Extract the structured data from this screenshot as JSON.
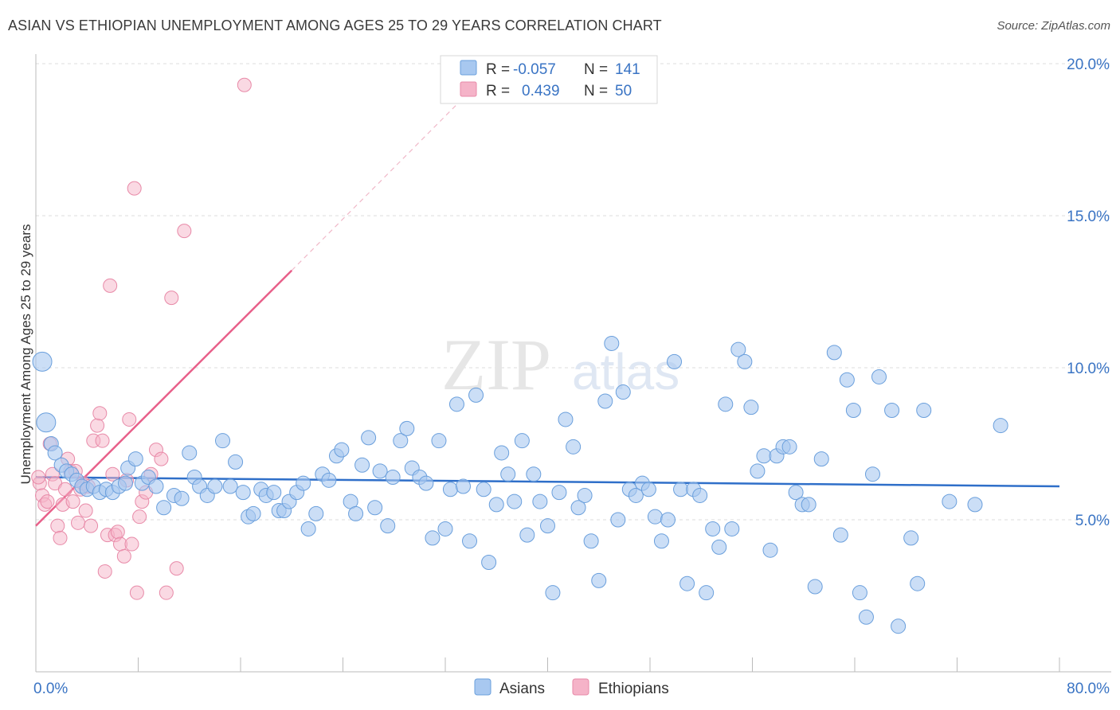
{
  "header": {
    "title": "ASIAN VS ETHIOPIAN UNEMPLOYMENT AMONG AGES 25 TO 29 YEARS CORRELATION CHART",
    "source": "Source: ZipAtlas.com"
  },
  "watermark": {
    "zip": "ZIP",
    "atlas": "atlas"
  },
  "stats_box": {
    "rows": [
      {
        "r_label": "R =",
        "r_value": "-0.057",
        "n_label": "N =",
        "n_value": "141",
        "color": "#a8c8f0"
      },
      {
        "r_label": "R =",
        "r_value": " 0.439",
        "n_label": "N =",
        "n_value": " 50",
        "color": "#f5b3c8"
      }
    ]
  },
  "legend": {
    "items": [
      "Asians",
      "Ethiopians"
    ]
  },
  "colors": {
    "asian_fill": "#a8c8f0",
    "asian_stroke": "#6a9fdc",
    "asian_line": "#2f6fc9",
    "ethiopian_fill": "#f5b3c8",
    "ethiopian_stroke": "#e88aa8",
    "ethiopian_line": "#e8608a",
    "tick": "#3a74c4"
  },
  "chart_data": {
    "type": "scatter",
    "title": "ASIAN VS ETHIOPIAN UNEMPLOYMENT AMONG AGES 25 TO 29 YEARS CORRELATION CHART",
    "xlabel": "",
    "ylabel": "Unemployment Among Ages 25 to 29 years",
    "xlim": [
      0,
      80
    ],
    "ylim": [
      0,
      20
    ],
    "x_tick_labels": [
      "0.0%",
      "80.0%"
    ],
    "y_ticks": [
      5,
      10,
      15,
      20
    ],
    "y_tick_labels": [
      "5.0%",
      "10.0%",
      "15.0%",
      "20.0%"
    ],
    "grid": true,
    "legend_position": "bottom-center",
    "series": [
      {
        "name": "Asians",
        "r": -0.057,
        "n": 141,
        "trend": {
          "x0": 0,
          "y0": 6.4,
          "x1": 80,
          "y1": 6.1
        },
        "points": [
          [
            0.5,
            10.2
          ],
          [
            0.8,
            8.2
          ],
          [
            1.2,
            7.5
          ],
          [
            1.5,
            7.2
          ],
          [
            2,
            6.8
          ],
          [
            2.4,
            6.6
          ],
          [
            2.8,
            6.5
          ],
          [
            3.2,
            6.3
          ],
          [
            3.6,
            6.1
          ],
          [
            4,
            6.0
          ],
          [
            4.5,
            6.1
          ],
          [
            5,
            5.9
          ],
          [
            5.5,
            6.0
          ],
          [
            6,
            5.9
          ],
          [
            6.5,
            6.1
          ],
          [
            7,
            6.2
          ],
          [
            7.2,
            6.7
          ],
          [
            7.8,
            7.0
          ],
          [
            8.3,
            6.2
          ],
          [
            8.8,
            6.4
          ],
          [
            9.4,
            6.1
          ],
          [
            10,
            5.4
          ],
          [
            10.8,
            5.8
          ],
          [
            11.4,
            5.7
          ],
          [
            12,
            7.2
          ],
          [
            12.4,
            6.4
          ],
          [
            12.8,
            6.1
          ],
          [
            13.4,
            5.8
          ],
          [
            14,
            6.1
          ],
          [
            14.6,
            7.6
          ],
          [
            15.2,
            6.1
          ],
          [
            15.6,
            6.9
          ],
          [
            16.2,
            5.9
          ],
          [
            16.6,
            5.1
          ],
          [
            17,
            5.2
          ],
          [
            17.6,
            6.0
          ],
          [
            18,
            5.8
          ],
          [
            18.6,
            5.9
          ],
          [
            19,
            5.3
          ],
          [
            19.4,
            5.3
          ],
          [
            19.8,
            5.6
          ],
          [
            20.4,
            5.9
          ],
          [
            20.9,
            6.2
          ],
          [
            21.3,
            4.7
          ],
          [
            21.9,
            5.2
          ],
          [
            22.4,
            6.5
          ],
          [
            22.9,
            6.3
          ],
          [
            23.5,
            7.1
          ],
          [
            23.9,
            7.3
          ],
          [
            24.6,
            5.6
          ],
          [
            25,
            5.2
          ],
          [
            25.5,
            6.8
          ],
          [
            26,
            7.7
          ],
          [
            26.5,
            5.4
          ],
          [
            26.9,
            6.6
          ],
          [
            27.5,
            4.8
          ],
          [
            27.9,
            6.4
          ],
          [
            28.5,
            7.6
          ],
          [
            29,
            8.0
          ],
          [
            29.4,
            6.7
          ],
          [
            30,
            6.4
          ],
          [
            30.5,
            6.2
          ],
          [
            31,
            4.4
          ],
          [
            31.5,
            7.6
          ],
          [
            32,
            4.7
          ],
          [
            32.4,
            6.0
          ],
          [
            32.9,
            8.8
          ],
          [
            33.4,
            6.1
          ],
          [
            33.9,
            4.3
          ],
          [
            34.4,
            9.1
          ],
          [
            35,
            6.0
          ],
          [
            35.4,
            3.6
          ],
          [
            36,
            5.5
          ],
          [
            36.4,
            7.2
          ],
          [
            36.9,
            6.5
          ],
          [
            37.4,
            5.6
          ],
          [
            38,
            7.6
          ],
          [
            38.4,
            4.5
          ],
          [
            38.9,
            6.5
          ],
          [
            39.4,
            5.6
          ],
          [
            40,
            4.8
          ],
          [
            40.4,
            2.6
          ],
          [
            40.9,
            5.9
          ],
          [
            41.4,
            8.3
          ],
          [
            42,
            7.4
          ],
          [
            42.4,
            5.4
          ],
          [
            42.9,
            5.8
          ],
          [
            43.4,
            4.3
          ],
          [
            44,
            3.0
          ],
          [
            44.5,
            8.9
          ],
          [
            45,
            10.8
          ],
          [
            45.5,
            5.0
          ],
          [
            45.9,
            9.2
          ],
          [
            46.4,
            6.0
          ],
          [
            46.9,
            5.8
          ],
          [
            47.4,
            6.2
          ],
          [
            47.9,
            6.0
          ],
          [
            48.4,
            5.1
          ],
          [
            48.9,
            4.3
          ],
          [
            49.4,
            5.0
          ],
          [
            49.9,
            10.2
          ],
          [
            50.4,
            6.0
          ],
          [
            50.9,
            2.9
          ],
          [
            51.4,
            6.0
          ],
          [
            51.9,
            5.8
          ],
          [
            52.4,
            2.6
          ],
          [
            52.9,
            4.7
          ],
          [
            53.4,
            4.1
          ],
          [
            53.9,
            8.8
          ],
          [
            54.4,
            4.7
          ],
          [
            54.9,
            10.6
          ],
          [
            55.4,
            10.2
          ],
          [
            55.9,
            8.7
          ],
          [
            56.4,
            6.6
          ],
          [
            56.9,
            7.1
          ],
          [
            57.4,
            4.0
          ],
          [
            57.9,
            7.1
          ],
          [
            58.4,
            7.4
          ],
          [
            58.9,
            7.4
          ],
          [
            59.4,
            5.9
          ],
          [
            59.9,
            5.5
          ],
          [
            60.4,
            5.5
          ],
          [
            60.9,
            2.8
          ],
          [
            61.4,
            7.0
          ],
          [
            62.4,
            10.5
          ],
          [
            62.9,
            4.5
          ],
          [
            63.4,
            9.6
          ],
          [
            63.9,
            8.6
          ],
          [
            64.4,
            2.6
          ],
          [
            64.9,
            1.8
          ],
          [
            65.4,
            6.5
          ],
          [
            65.9,
            9.7
          ],
          [
            66.9,
            8.6
          ],
          [
            67.4,
            1.5
          ],
          [
            68.4,
            4.4
          ],
          [
            68.9,
            2.9
          ],
          [
            69.4,
            8.6
          ],
          [
            71.4,
            5.6
          ],
          [
            73.4,
            5.5
          ],
          [
            75.4,
            8.1
          ]
        ]
      },
      {
        "name": "Ethiopians",
        "r": 0.439,
        "n": 50,
        "trend": {
          "x0": 0,
          "y0": 4.8,
          "x1": 20,
          "y1": 13.2
        },
        "trend_extension": {
          "x0": 20,
          "y0": 13.2,
          "x1": 33,
          "y1": 18.7
        },
        "points": [
          [
            0.3,
            6.2
          ],
          [
            0.5,
            5.8
          ],
          [
            0.7,
            5.5
          ],
          [
            0.9,
            5.6
          ],
          [
            1.1,
            7.5
          ],
          [
            1.3,
            6.5
          ],
          [
            1.5,
            6.2
          ],
          [
            1.7,
            4.8
          ],
          [
            1.9,
            4.4
          ],
          [
            2.1,
            5.5
          ],
          [
            2.3,
            6.0
          ],
          [
            2.5,
            7.0
          ],
          [
            2.7,
            6.6
          ],
          [
            2.9,
            5.6
          ],
          [
            3.1,
            6.6
          ],
          [
            3.3,
            4.9
          ],
          [
            3.5,
            6.0
          ],
          [
            3.7,
            6.2
          ],
          [
            3.9,
            5.3
          ],
          [
            4.1,
            6.1
          ],
          [
            4.3,
            4.8
          ],
          [
            4.5,
            7.6
          ],
          [
            4.8,
            8.1
          ],
          [
            5.0,
            8.5
          ],
          [
            5.2,
            7.6
          ],
          [
            5.4,
            3.3
          ],
          [
            5.6,
            4.5
          ],
          [
            5.8,
            12.7
          ],
          [
            6.0,
            6.5
          ],
          [
            6.2,
            4.5
          ],
          [
            6.4,
            4.6
          ],
          [
            6.6,
            4.2
          ],
          [
            6.9,
            3.8
          ],
          [
            7.1,
            6.3
          ],
          [
            7.3,
            8.3
          ],
          [
            7.5,
            4.2
          ],
          [
            7.7,
            15.9
          ],
          [
            7.9,
            2.6
          ],
          [
            8.1,
            5.1
          ],
          [
            8.3,
            5.6
          ],
          [
            8.6,
            5.9
          ],
          [
            9.0,
            6.5
          ],
          [
            9.4,
            7.3
          ],
          [
            9.8,
            7.0
          ],
          [
            10.2,
            2.6
          ],
          [
            10.6,
            12.3
          ],
          [
            11.0,
            3.4
          ],
          [
            11.6,
            14.5
          ],
          [
            16.3,
            19.3
          ],
          [
            0.2,
            6.4
          ]
        ]
      }
    ]
  }
}
